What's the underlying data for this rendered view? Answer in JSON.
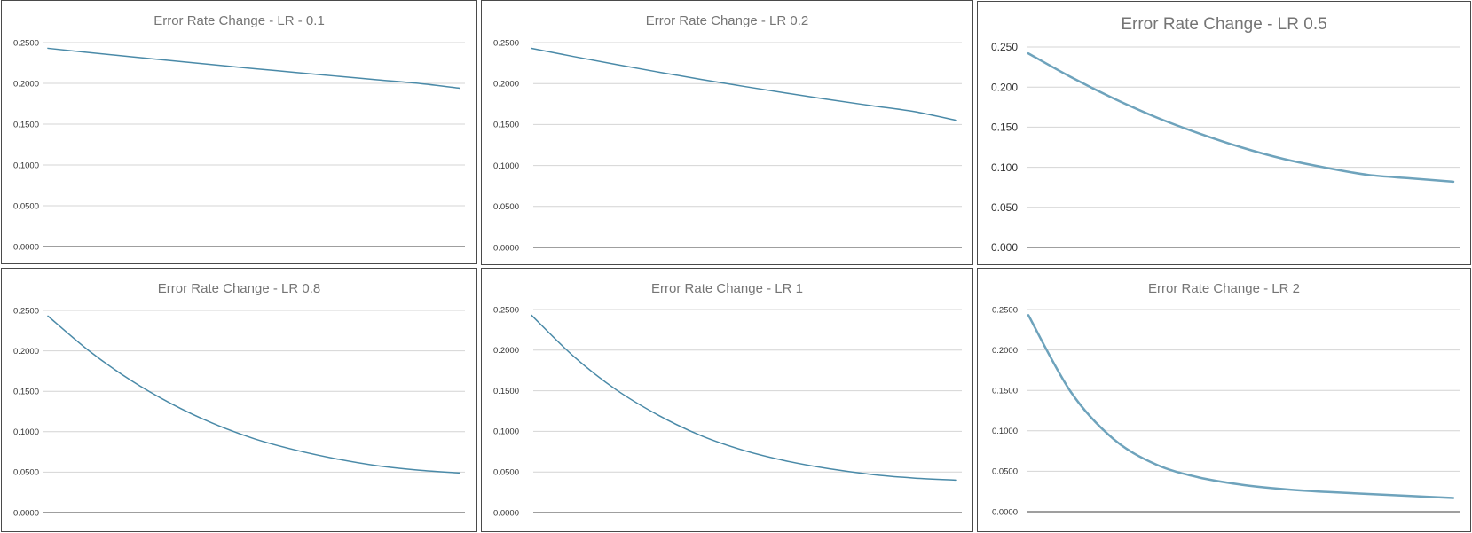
{
  "chart_data": [
    {
      "type": "line",
      "title": "Error Rate Change - LR - 0.1",
      "y_ticks": [
        "0.0000",
        "0.0500",
        "0.1000",
        "0.1500",
        "0.2000",
        "0.2500"
      ],
      "ylim": [
        0,
        0.25
      ],
      "grid": true,
      "x": [
        0,
        1,
        2,
        3,
        4,
        5,
        6,
        7,
        8,
        9,
        10
      ],
      "series": [
        {
          "values": [
            0.243,
            0.2378,
            0.2327,
            0.2278,
            0.2229,
            0.2181,
            0.2135,
            0.2089,
            0.2044,
            0.2,
            0.194
          ],
          "color": "#4a8aa8"
        }
      ]
    },
    {
      "type": "line",
      "title": "Error Rate Change - LR 0.2",
      "y_ticks": [
        "0.0000",
        "0.0500",
        "0.1000",
        "0.1500",
        "0.2000",
        "0.2500"
      ],
      "ylim": [
        0,
        0.25
      ],
      "grid": true,
      "x": [
        0,
        1,
        2,
        3,
        4,
        5,
        6,
        7,
        8,
        9,
        10
      ],
      "series": [
        {
          "values": [
            0.243,
            0.2329,
            0.2232,
            0.2139,
            0.205,
            0.1965,
            0.1883,
            0.1805,
            0.173,
            0.1658,
            0.155
          ],
          "color": "#4a8aa8"
        }
      ]
    },
    {
      "type": "line",
      "title": "Error Rate Change - LR 0.5",
      "y_ticks": [
        "0.000",
        "0.050",
        "0.100",
        "0.150",
        "0.200",
        "0.250"
      ],
      "ylim": [
        0,
        0.25
      ],
      "grid": true,
      "x": [
        0,
        1,
        2,
        3,
        4,
        5,
        6,
        7,
        8,
        9,
        10
      ],
      "series": [
        {
          "values": [
            0.242,
            0.2125,
            0.186,
            0.1625,
            0.1425,
            0.125,
            0.1105,
            0.0995,
            0.0905,
            0.0862,
            0.082
          ],
          "color": "#6ea3bc"
        }
      ]
    },
    {
      "type": "line",
      "title": "Error Rate Change - LR 0.8",
      "y_ticks": [
        "0.0000",
        "0.0500",
        "0.1000",
        "0.1500",
        "0.2000",
        "0.2500"
      ],
      "ylim": [
        0,
        0.25
      ],
      "grid": true,
      "x": [
        0,
        1,
        2,
        3,
        4,
        5,
        6,
        7,
        8,
        9,
        10
      ],
      "series": [
        {
          "values": [
            0.243,
            0.2,
            0.164,
            0.1345,
            0.1105,
            0.0915,
            0.0775,
            0.0665,
            0.058,
            0.0525,
            0.049
          ],
          "color": "#4a8aa8"
        }
      ]
    },
    {
      "type": "line",
      "title": "Error Rate Change - LR 1",
      "y_ticks": [
        "0.0000",
        "0.0500",
        "0.1000",
        "0.1500",
        "0.2000",
        "0.2500"
      ],
      "ylim": [
        0,
        0.25
      ],
      "grid": true,
      "x": [
        0,
        1,
        2,
        3,
        4,
        5,
        6,
        7,
        8,
        9,
        10
      ],
      "series": [
        {
          "values": [
            0.243,
            0.192,
            0.151,
            0.1195,
            0.0945,
            0.0765,
            0.0635,
            0.054,
            0.047,
            0.0425,
            0.04
          ],
          "color": "#4a8aa8"
        }
      ]
    },
    {
      "type": "line",
      "title": "Error Rate Change - LR 2",
      "y_ticks": [
        "0.0000",
        "0.0500",
        "0.1000",
        "0.1500",
        "0.2000",
        "0.2500"
      ],
      "ylim": [
        0,
        0.25
      ],
      "grid": true,
      "x": [
        0,
        1,
        2,
        3,
        4,
        5,
        6,
        7,
        8,
        9,
        10
      ],
      "series": [
        {
          "values": [
            0.243,
            0.148,
            0.09,
            0.0585,
            0.0425,
            0.0335,
            0.028,
            0.0245,
            0.022,
            0.0195,
            0.017
          ],
          "color": "#6ea3bc"
        }
      ]
    }
  ]
}
